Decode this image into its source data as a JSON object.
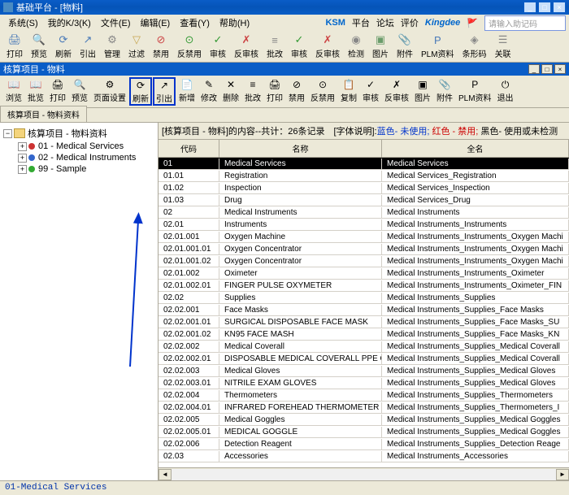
{
  "window": {
    "title": "基础平台 - [物料]"
  },
  "menu": {
    "items": [
      "系统(S)",
      "我的K/3(K)",
      "文件(E)",
      "编辑(E)",
      "查看(Y)",
      "帮助(H)"
    ],
    "brand1": "KSM",
    "brand1_suffix": "平台",
    "link1": "论坛",
    "link2": "评价",
    "brand2": "Kingdee",
    "search_hint": "请输入助记码"
  },
  "toolbar1": [
    {
      "icon": "🖨",
      "lbl": "打印",
      "c": "#4a7ab8"
    },
    {
      "icon": "🔍",
      "lbl": "预览",
      "c": "#4a7ab8"
    },
    {
      "icon": "⟳",
      "lbl": "刷新",
      "c": "#4a7ab8"
    },
    {
      "icon": "↗",
      "lbl": "引出",
      "c": "#4a7ab8"
    },
    {
      "icon": "⚙",
      "lbl": "管理",
      "c": "#888"
    },
    {
      "icon": "▽",
      "lbl": "过滤",
      "c": "#c7a752"
    },
    {
      "icon": "⊘",
      "lbl": "禁用",
      "c": "#c44"
    },
    {
      "icon": "⊙",
      "lbl": "反禁用",
      "c": "#393"
    },
    {
      "icon": "✓",
      "lbl": "审核",
      "c": "#393"
    },
    {
      "icon": "✗",
      "lbl": "反审核",
      "c": "#c44"
    },
    {
      "icon": "≡",
      "lbl": "批改",
      "c": "#888"
    },
    {
      "icon": "✓",
      "lbl": "审核",
      "c": "#393"
    },
    {
      "icon": "✗",
      "lbl": "反审核",
      "c": "#c44"
    },
    {
      "icon": "◉",
      "lbl": "检测",
      "c": "#888"
    },
    {
      "icon": "▣",
      "lbl": "图片",
      "c": "#6a9c6a"
    },
    {
      "icon": "📎",
      "lbl": "附件",
      "c": "#888"
    },
    {
      "icon": "P",
      "lbl": "PLM资料",
      "c": "#4a7ab8"
    },
    {
      "icon": "◈",
      "lbl": "条形码",
      "c": "#888"
    },
    {
      "icon": "☰",
      "lbl": "关联",
      "c": "#888"
    }
  ],
  "subwin": {
    "title": "核算项目 - 物料"
  },
  "toolbar2": [
    {
      "icon": "📖",
      "lbl": "浏览"
    },
    {
      "icon": "📖",
      "lbl": "批览"
    },
    {
      "icon": "🖨",
      "lbl": "打印"
    },
    {
      "icon": "🔍",
      "lbl": "预览"
    },
    {
      "icon": "⚙",
      "lbl": "页面设置"
    },
    {
      "icon": "⟳",
      "lbl": "刷新",
      "hl": true
    },
    {
      "icon": "↗",
      "lbl": "引出",
      "hl": true
    },
    {
      "icon": "📄",
      "lbl": "新增"
    },
    {
      "icon": "✎",
      "lbl": "修改"
    },
    {
      "icon": "✕",
      "lbl": "删除"
    },
    {
      "icon": "≡",
      "lbl": "批改"
    },
    {
      "icon": "🖨",
      "lbl": "打印"
    },
    {
      "icon": "⊘",
      "lbl": "禁用"
    },
    {
      "icon": "⊙",
      "lbl": "反禁用"
    },
    {
      "icon": "📋",
      "lbl": "复制"
    },
    {
      "icon": "✓",
      "lbl": "审核"
    },
    {
      "icon": "✗",
      "lbl": "反审核"
    },
    {
      "icon": "▣",
      "lbl": "图片"
    },
    {
      "icon": "📎",
      "lbl": "附件"
    },
    {
      "icon": "P",
      "lbl": "PLM资料"
    },
    {
      "icon": "⏻",
      "lbl": "退出"
    }
  ],
  "tab": {
    "label": "核算项目 - 物料资料"
  },
  "tree": {
    "root": "核算项目 - 物料资料",
    "children": [
      {
        "dot": "#cc3333",
        "label": "01 - Medical Services"
      },
      {
        "dot": "#3366cc",
        "label": "02 - Medical Instruments"
      },
      {
        "dot": "#33aa33",
        "label": "99 - Sample"
      }
    ]
  },
  "grid": {
    "info_prefix": "[核算项目 - 物料]的内容--共计：26条记录　[字体说明]:",
    "info_blue": "蓝色- 未使用;",
    "info_red": " 红色 - 禁用;",
    "info_black": " 黑色- 使用或未检测",
    "cols": [
      "代码",
      "名称",
      "全名"
    ],
    "rows": [
      {
        "c": "01",
        "n": "Medical Services",
        "f": "Medical Services",
        "sel": true
      },
      {
        "c": "01.01",
        "n": "Registration",
        "f": "Medical Services_Registration"
      },
      {
        "c": "01.02",
        "n": "Inspection",
        "f": "Medical Services_Inspection"
      },
      {
        "c": "01.03",
        "n": "Drug",
        "f": "Medical Services_Drug"
      },
      {
        "c": "02",
        "n": "Medical Instruments",
        "f": "Medical Instruments"
      },
      {
        "c": "02.01",
        "n": "Instruments",
        "f": "Medical Instruments_Instruments"
      },
      {
        "c": "02.01.001",
        "n": "Oxygen Machine",
        "f": "Medical Instruments_Instruments_Oxygen Machi"
      },
      {
        "c": "02.01.001.01",
        "n": "Oxygen Concentrator",
        "f": "Medical Instruments_Instruments_Oxygen Machi"
      },
      {
        "c": "02.01.001.02",
        "n": "Oxygen Concentrator",
        "f": "Medical Instruments_Instruments_Oxygen Machi"
      },
      {
        "c": "02.01.002",
        "n": "Oximeter",
        "f": "Medical Instruments_Instruments_Oximeter"
      },
      {
        "c": "02.01.002.01",
        "n": "FINGER PULSE OXYMETER",
        "f": "Medical Instruments_Instruments_Oximeter_FIN"
      },
      {
        "c": "02.02",
        "n": "Supplies",
        "f": "Medical Instruments_Supplies"
      },
      {
        "c": "02.02.001",
        "n": "Face Masks",
        "f": "Medical Instruments_Supplies_Face Masks"
      },
      {
        "c": "02.02.001.01",
        "n": "SURGICAL DISPOSABLE FACE MASK",
        "f": "Medical Instruments_Supplies_Face Masks_SU"
      },
      {
        "c": "02.02.001.02",
        "n": "KN95 FACE MASH",
        "f": "Medical Instruments_Supplies_Face Masks_KN"
      },
      {
        "c": "02.02.002",
        "n": "Medical Coverall",
        "f": "Medical Instruments_Supplies_Medical Coverall"
      },
      {
        "c": "02.02.002.01",
        "n": "DISPOSABLE MEDICAL COVERALL PPE CATGO",
        "f": "Medical Instruments_Supplies_Medical Coverall"
      },
      {
        "c": "02.02.003",
        "n": "Medical Gloves",
        "f": "Medical Instruments_Supplies_Medical Gloves"
      },
      {
        "c": "02.02.003.01",
        "n": "NITRILE EXAM GLOVES",
        "f": "Medical Instruments_Supplies_Medical Gloves"
      },
      {
        "c": "02.02.004",
        "n": "Thermometers",
        "f": "Medical Instruments_Supplies_Thermometers"
      },
      {
        "c": "02.02.004.01",
        "n": "INFRARED FOREHEAD THERMOMETER",
        "f": "Medical Instruments_Supplies_Thermometers_I"
      },
      {
        "c": "02.02.005",
        "n": "Medical Goggles",
        "f": "Medical Instruments_Supplies_Medical Goggles"
      },
      {
        "c": "02.02.005.01",
        "n": "MEDICAL GOGGLE",
        "f": "Medical Instruments_Supplies_Medical Goggles"
      },
      {
        "c": "02.02.006",
        "n": "Detection Reagent",
        "f": "Medical Instruments_Supplies_Detection Reage"
      },
      {
        "c": "02.03",
        "n": "Accessories",
        "f": "Medical Instruments_Accessories"
      }
    ]
  },
  "status": "01-Medical Services"
}
